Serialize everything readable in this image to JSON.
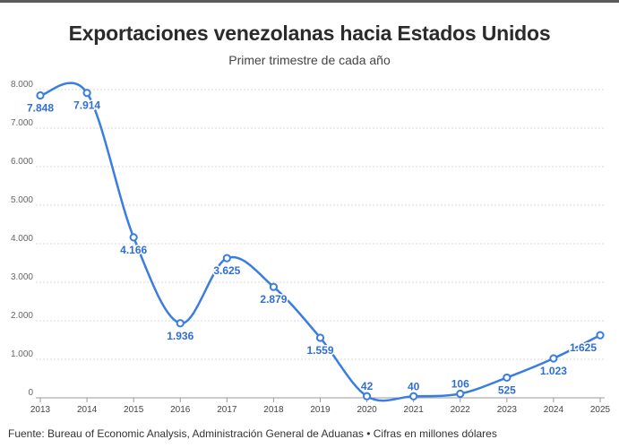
{
  "chart_data": {
    "type": "line",
    "title": "Exportaciones venezolanas hacia Estados Unidos",
    "subtitle": "Primer trimestre de cada año",
    "x": [
      "2013",
      "2014",
      "2015",
      "2016",
      "2017",
      "2018",
      "2019",
      "2020",
      "2021",
      "2022",
      "2023",
      "2024",
      "2025"
    ],
    "series": [
      {
        "values": [
          7848,
          7914,
          4166,
          1936,
          3625,
          2879,
          1559,
          42,
          40,
          106,
          525,
          1023,
          1625
        ]
      }
    ],
    "data_labels": [
      "7.848",
      "7.914",
      "4.166",
      "1.936",
      "3.625",
      "2.879",
      "1.559",
      "42",
      "40",
      "106",
      "525",
      "1.023",
      "1.625"
    ],
    "ylim": [
      0,
      8000
    ],
    "yticks": [
      0,
      1000,
      2000,
      3000,
      4000,
      5000,
      6000,
      7000,
      8000
    ],
    "ytick_labels": [
      "0",
      "1.000",
      "2.000",
      "3.000",
      "4.000",
      "5.000",
      "6.000",
      "7.000",
      "8.000"
    ],
    "grid": true,
    "line_color": "#3a7de0",
    "source": "Fuente: Bureau of Economic Analysis, Administración General de Aduanas • Cifras en millones dólares"
  }
}
